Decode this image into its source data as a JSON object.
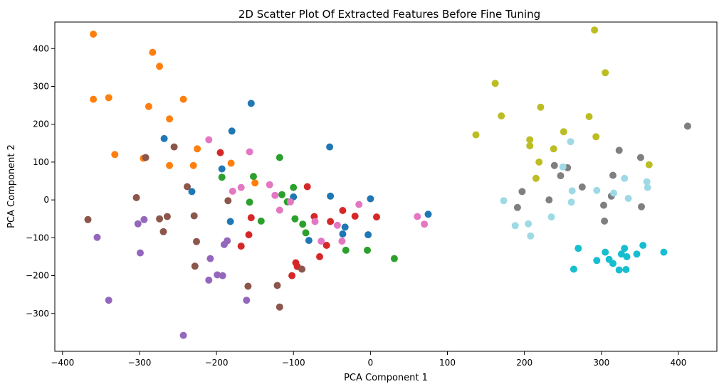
{
  "chart_data": {
    "type": "scatter",
    "title": "2D Scatter Plot Of Extracted Features Before Fine Tuning",
    "xlabel": "PCA Component 1",
    "ylabel": "PCA Component 2",
    "xlim": [
      -410,
      450
    ],
    "ylim": [
      -400,
      470
    ],
    "xticks": [
      -400,
      -300,
      -200,
      -100,
      0,
      100,
      200,
      300,
      400
    ],
    "yticks": [
      -300,
      -200,
      -100,
      0,
      100,
      200,
      300,
      400
    ],
    "grid": false,
    "legend": "none",
    "series": [
      {
        "color": "#1f77b4",
        "points": [
          [
            -155,
            255
          ],
          [
            -180,
            182
          ],
          [
            -268,
            162
          ],
          [
            -53,
            140
          ],
          [
            -193,
            82
          ],
          [
            -232,
            22
          ],
          [
            -52,
            10
          ],
          [
            -100,
            8
          ],
          [
            0,
            3
          ],
          [
            -182,
            -57
          ],
          [
            -33,
            -72
          ],
          [
            -36,
            -90
          ],
          [
            -80,
            -107
          ],
          [
            -3,
            -92
          ],
          [
            75,
            -38
          ]
        ]
      },
      {
        "color": "#ff7f0e",
        "points": [
          [
            -360,
            438
          ],
          [
            -283,
            390
          ],
          [
            -274,
            353
          ],
          [
            -340,
            270
          ],
          [
            -360,
            266
          ],
          [
            -288,
            247
          ],
          [
            -243,
            266
          ],
          [
            -261,
            214
          ],
          [
            -332,
            120
          ],
          [
            -295,
            110
          ],
          [
            -225,
            135
          ],
          [
            -181,
            97
          ],
          [
            -261,
            91
          ],
          [
            -230,
            91
          ],
          [
            -150,
            45
          ]
        ]
      },
      {
        "color": "#2ca02c",
        "points": [
          [
            -118,
            112
          ],
          [
            -193,
            60
          ],
          [
            -152,
            62
          ],
          [
            -100,
            33
          ],
          [
            -115,
            14
          ],
          [
            -157,
            -6
          ],
          [
            -108,
            -5
          ],
          [
            -142,
            -56
          ],
          [
            -98,
            -50
          ],
          [
            -88,
            -64
          ],
          [
            -84,
            -87
          ],
          [
            -32,
            -133
          ],
          [
            -4,
            -133
          ],
          [
            31,
            -155
          ]
        ]
      },
      {
        "color": "#d62728",
        "points": [
          [
            -195,
            125
          ],
          [
            -82,
            35
          ],
          [
            -36,
            -28
          ],
          [
            -73,
            -44
          ],
          [
            -20,
            -43
          ],
          [
            8,
            -45
          ],
          [
            -52,
            -57
          ],
          [
            -155,
            -47
          ],
          [
            -158,
            -92
          ],
          [
            -168,
            -122
          ],
          [
            -57,
            -120
          ],
          [
            -66,
            -150
          ],
          [
            -97,
            -166
          ],
          [
            -95,
            -176
          ],
          [
            -102,
            -200
          ]
        ]
      },
      {
        "color": "#9467bd",
        "points": [
          [
            -294,
            -52
          ],
          [
            -302,
            -63
          ],
          [
            -355,
            -99
          ],
          [
            -299,
            -140
          ],
          [
            -208,
            -155
          ],
          [
            -190,
            -118
          ],
          [
            -186,
            -108
          ],
          [
            -199,
            -198
          ],
          [
            -192,
            -200
          ],
          [
            -210,
            -212
          ],
          [
            -161,
            -265
          ],
          [
            -340,
            -265
          ],
          [
            -243,
            -358
          ]
        ]
      },
      {
        "color": "#8c564b",
        "points": [
          [
            -255,
            140
          ],
          [
            -292,
            112
          ],
          [
            -238,
            35
          ],
          [
            -304,
            6
          ],
          [
            -185,
            -2
          ],
          [
            -367,
            -52
          ],
          [
            -229,
            -42
          ],
          [
            -264,
            -44
          ],
          [
            -274,
            -50
          ],
          [
            -269,
            -84
          ],
          [
            -226,
            -110
          ],
          [
            -228,
            -175
          ],
          [
            -159,
            -228
          ],
          [
            -121,
            -226
          ],
          [
            -118,
            -283
          ],
          [
            -89,
            -183
          ]
        ]
      },
      {
        "color": "#e377c2",
        "points": [
          [
            -210,
            159
          ],
          [
            -157,
            127
          ],
          [
            -168,
            33
          ],
          [
            -179,
            23
          ],
          [
            -131,
            40
          ],
          [
            -124,
            12
          ],
          [
            -118,
            -27
          ],
          [
            -104,
            -5
          ],
          [
            -15,
            -12
          ],
          [
            -72,
            -57
          ],
          [
            -43,
            -67
          ],
          [
            -64,
            -109
          ],
          [
            -37,
            -109
          ],
          [
            61,
            -44
          ],
          [
            70,
            -64
          ]
        ]
      },
      {
        "color": "#7f7f7f",
        "points": [
          [
            412,
            195
          ],
          [
            323,
            131
          ],
          [
            351,
            112
          ],
          [
            239,
            91
          ],
          [
            256,
            85
          ],
          [
            247,
            64
          ],
          [
            315,
            65
          ],
          [
            313,
            10
          ],
          [
            275,
            34
          ],
          [
            197,
            22
          ],
          [
            191,
            -20
          ],
          [
            232,
            0
          ],
          [
            352,
            -18
          ],
          [
            303,
            -14
          ],
          [
            304,
            -56
          ]
        ]
      },
      {
        "color": "#bcbd22",
        "points": [
          [
            291,
            449
          ],
          [
            305,
            336
          ],
          [
            162,
            308
          ],
          [
            221,
            245
          ],
          [
            170,
            222
          ],
          [
            284,
            220
          ],
          [
            137,
            172
          ],
          [
            251,
            180
          ],
          [
            293,
            167
          ],
          [
            207,
            159
          ],
          [
            207,
            143
          ],
          [
            238,
            135
          ],
          [
            219,
            100
          ],
          [
            362,
            93
          ],
          [
            215,
            57
          ]
        ]
      },
      {
        "color": "#17becf",
        "points": [
          [
            270,
            -128
          ],
          [
            330,
            -128
          ],
          [
            354,
            -120
          ],
          [
            381,
            -138
          ],
          [
            305,
            -138
          ],
          [
            326,
            -143
          ],
          [
            346,
            -143
          ],
          [
            333,
            -150
          ],
          [
            310,
            -157
          ],
          [
            294,
            -160
          ],
          [
            315,
            -168
          ],
          [
            264,
            -183
          ],
          [
            323,
            -185
          ],
          [
            332,
            -184
          ]
        ]
      },
      {
        "color": "#9edae5",
        "points": [
          [
            260,
            154
          ],
          [
            250,
            87
          ],
          [
            330,
            57
          ],
          [
            359,
            48
          ],
          [
            262,
            24
          ],
          [
            294,
            25
          ],
          [
            316,
            18
          ],
          [
            360,
            33
          ],
          [
            335,
            4
          ],
          [
            173,
            -2
          ],
          [
            261,
            -6
          ],
          [
            235,
            -45
          ],
          [
            188,
            -68
          ],
          [
            205,
            -63
          ],
          [
            208,
            -95
          ]
        ]
      }
    ]
  }
}
